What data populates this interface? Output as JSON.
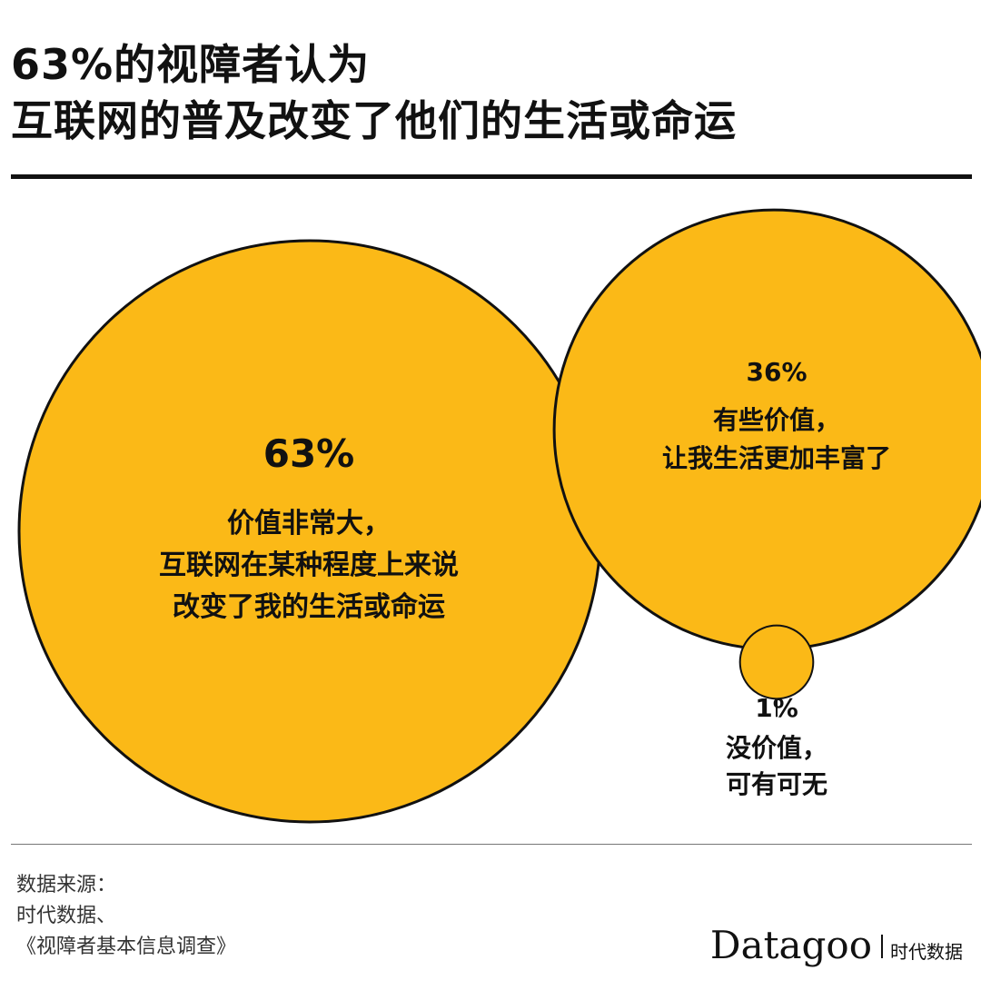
{
  "title_lines": [
    "63%的视障者认为",
    "互联网的普及改变了他们的生活或命运"
  ],
  "colors": {
    "bubble_fill": "#FBB917",
    "bubble_stroke": "#111111",
    "rule": "#111111"
  },
  "chart_data": {
    "type": "bubble",
    "title": "63%的视障者认为互联网的普及改变了他们的生活或命运",
    "values": [
      {
        "percent_label": "63%",
        "value": 63,
        "label_lines": [
          "价值非常大，",
          "互联网在某种程度上来说",
          "改变了我的生活或命运"
        ]
      },
      {
        "percent_label": "36%",
        "value": 36,
        "label_lines": [
          "有些价值，",
          "让我生活更加丰富了"
        ]
      },
      {
        "percent_label": "1%",
        "value": 1,
        "label_lines": [
          "没价值，",
          "可有可无"
        ]
      }
    ]
  },
  "source": {
    "lines": [
      "数据来源：",
      "时代数据、",
      "《视障者基本信息调查》"
    ]
  },
  "brand": {
    "latin": "Datagoo",
    "cn": "时代数据"
  }
}
